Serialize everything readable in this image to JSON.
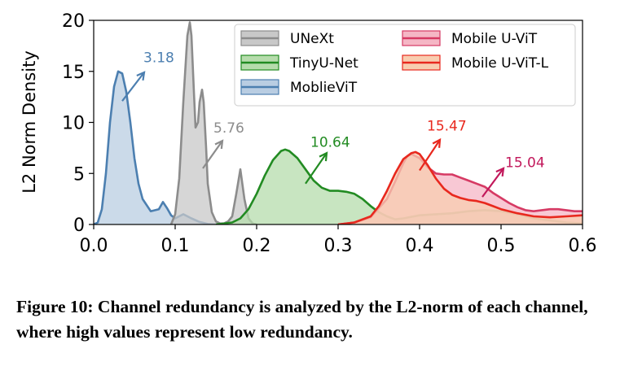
{
  "chart_data": {
    "type": "area",
    "title": "",
    "xlabel": "",
    "ylabel": "L2 Norm Density",
    "xlim": [
      0.0,
      0.6
    ],
    "ylim": [
      0,
      20
    ],
    "xticks": [
      "0.0",
      "0.1",
      "0.2",
      "0.3",
      "0.4",
      "0.5",
      "0.6"
    ],
    "yticks": [
      "0",
      "5",
      "10",
      "15",
      "20"
    ],
    "legend_position": "top-right",
    "series": [
      {
        "name": "MoblieViT",
        "color": "#4c7fb0",
        "fill": "#b9cde2",
        "x": [
          0.0,
          0.005,
          0.01,
          0.015,
          0.02,
          0.025,
          0.03,
          0.035,
          0.04,
          0.045,
          0.05,
          0.055,
          0.06,
          0.07,
          0.08,
          0.085,
          0.09,
          0.095,
          0.1,
          0.11,
          0.12,
          0.13,
          0.14,
          0.15
        ],
        "values": [
          0,
          0.2,
          1.5,
          5,
          10,
          13.5,
          15,
          14.8,
          13,
          10,
          6.5,
          4,
          2.5,
          1.3,
          1.5,
          2.2,
          1.6,
          0.9,
          0.6,
          1.0,
          0.6,
          0.25,
          0.05,
          0
        ]
      },
      {
        "name": "UNeXt",
        "color": "#8c8c8c",
        "fill": "#c8c8c8",
        "x": [
          0.095,
          0.1,
          0.105,
          0.11,
          0.115,
          0.118,
          0.12,
          0.123,
          0.125,
          0.128,
          0.13,
          0.133,
          0.135,
          0.138,
          0.14,
          0.145,
          0.15,
          0.155,
          0.16,
          0.165,
          0.17,
          0.175,
          0.18,
          0.185,
          0.19,
          0.195,
          0.2
        ],
        "values": [
          0,
          1,
          4.5,
          12,
          18.5,
          19.8,
          18.5,
          13,
          9.5,
          10,
          12,
          13.2,
          12,
          7.5,
          4,
          1.2,
          0.3,
          0.1,
          0.1,
          0.3,
          0.8,
          3,
          5.4,
          2.5,
          0.6,
          0.1,
          0
        ]
      },
      {
        "name": "TinyU-Net",
        "color": "#228b22",
        "fill": "#b6dcac",
        "x": [
          0.15,
          0.17,
          0.18,
          0.19,
          0.2,
          0.21,
          0.22,
          0.23,
          0.235,
          0.24,
          0.25,
          0.26,
          0.27,
          0.28,
          0.29,
          0.3,
          0.31,
          0.32,
          0.33,
          0.34,
          0.35,
          0.36,
          0.37,
          0.38,
          0.4,
          0.42,
          0.44,
          0.46,
          0.48,
          0.5,
          0.52,
          0.54,
          0.56,
          0.58,
          0.6
        ],
        "values": [
          0,
          0.2,
          0.6,
          1.5,
          3,
          4.8,
          6.3,
          7.2,
          7.35,
          7.2,
          6.5,
          5.4,
          4.3,
          3.6,
          3.3,
          3.3,
          3.2,
          3.0,
          2.5,
          1.8,
          1.2,
          0.8,
          0.5,
          0.6,
          0.9,
          1.0,
          1.1,
          1.3,
          1.4,
          1.3,
          1.0,
          0.6,
          0.4,
          0.2,
          0.1
        ]
      },
      {
        "name": "Mobile U-ViT",
        "color": "#d63a64",
        "fill": "#f5b6c5",
        "x": [
          0.3,
          0.32,
          0.34,
          0.36,
          0.37,
          0.38,
          0.385,
          0.39,
          0.4,
          0.41,
          0.42,
          0.43,
          0.44,
          0.45,
          0.46,
          0.47,
          0.48,
          0.49,
          0.5,
          0.51,
          0.52,
          0.53,
          0.54,
          0.55,
          0.56,
          0.57,
          0.58,
          0.59,
          0.6
        ],
        "values": [
          0,
          0.2,
          0.7,
          2.5,
          4.2,
          6.0,
          6.7,
          6.9,
          6.5,
          5.6,
          5.0,
          4.9,
          4.9,
          4.6,
          4.3,
          4.0,
          3.7,
          3.1,
          2.6,
          2.1,
          1.7,
          1.4,
          1.3,
          1.4,
          1.5,
          1.5,
          1.4,
          1.3,
          1.3
        ]
      },
      {
        "name": "Mobile U-ViT-L",
        "color": "#e8281e",
        "fill": "#f8cdb0",
        "x": [
          0.3,
          0.32,
          0.34,
          0.35,
          0.36,
          0.37,
          0.38,
          0.39,
          0.395,
          0.4,
          0.41,
          0.42,
          0.43,
          0.44,
          0.45,
          0.46,
          0.47,
          0.48,
          0.49,
          0.5,
          0.52,
          0.54,
          0.56,
          0.58,
          0.6
        ],
        "values": [
          0,
          0.2,
          0.8,
          1.8,
          3.3,
          5.0,
          6.4,
          7.0,
          7.1,
          6.9,
          5.8,
          4.5,
          3.5,
          2.9,
          2.6,
          2.4,
          2.3,
          2.1,
          1.8,
          1.5,
          1.1,
          0.8,
          0.7,
          0.8,
          0.9
        ]
      }
    ],
    "annotations": [
      {
        "text": "3.18",
        "color": "#4c7fb0",
        "x": 0.061,
        "y": 15.9,
        "arrow_from": [
          0.035,
          12.1
        ],
        "arrow_to": [
          0.062,
          14.9
        ]
      },
      {
        "text": "5.76",
        "color": "#8c8c8c",
        "x": 0.147,
        "y": 9.0,
        "arrow_from": [
          0.134,
          5.5
        ],
        "arrow_to": [
          0.158,
          8.2
        ]
      },
      {
        "text": "10.64",
        "color": "#228b22",
        "x": 0.266,
        "y": 7.6,
        "arrow_from": [
          0.26,
          4.0
        ],
        "arrow_to": [
          0.286,
          7.0
        ]
      },
      {
        "text": "15.47",
        "color": "#e8281e",
        "x": 0.409,
        "y": 9.2,
        "arrow_from": [
          0.4,
          5.3
        ],
        "arrow_to": [
          0.425,
          8.3
        ]
      },
      {
        "text": "15.04",
        "color": "#c2185b",
        "x": 0.505,
        "y": 5.6,
        "arrow_from": [
          0.477,
          2.7
        ],
        "arrow_to": [
          0.503,
          5.5
        ]
      }
    ]
  },
  "caption": "Figure 10: Channel redundancy is analyzed by the L2-norm of each channel, where high values represent low redundancy."
}
